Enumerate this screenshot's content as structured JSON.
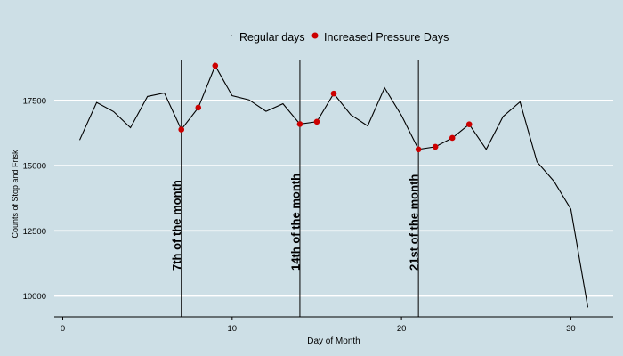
{
  "chart_data": {
    "type": "line",
    "title": "",
    "xlabel": "Day of Month",
    "ylabel": "Counts of Stop and Frisk",
    "xlim": [
      -0.5,
      32.5
    ],
    "ylim": [
      9200,
      19300
    ],
    "x_ticks": [
      0,
      10,
      20,
      30
    ],
    "y_ticks": [
      10000,
      12500,
      15000,
      17500
    ],
    "grid": "horizontal",
    "legend_position": "top-center",
    "legend": [
      {
        "label": "Regular days",
        "marker": "line"
      },
      {
        "label": "Increased Pressure Days",
        "marker": "dot"
      }
    ],
    "series": [
      {
        "name": "Regular days",
        "x": [
          1,
          2,
          3,
          4,
          5,
          6,
          7,
          8,
          9,
          10,
          11,
          12,
          13,
          14,
          15,
          16,
          17,
          18,
          19,
          20,
          21,
          22,
          23,
          24,
          25,
          26,
          27,
          28,
          29,
          30,
          31
        ],
        "values": [
          15980,
          17420,
          17070,
          16450,
          17650,
          17780,
          16380,
          17220,
          18830,
          17680,
          17520,
          17080,
          17370,
          16590,
          16680,
          17760,
          16950,
          16520,
          17980,
          16920,
          15620,
          15720,
          16060,
          16580,
          15620,
          16880,
          17440,
          15140,
          14400,
          13330,
          9560
        ]
      },
      {
        "name": "Increased Pressure Days",
        "x": [
          7,
          8,
          9,
          14,
          15,
          16,
          21,
          22,
          23,
          24
        ],
        "values": [
          16380,
          17220,
          18830,
          16590,
          16680,
          17760,
          15620,
          15720,
          16060,
          16580
        ]
      }
    ],
    "annotations": [
      {
        "x": 7,
        "text": "7th of the month"
      },
      {
        "x": 14,
        "text": "14th of the month"
      },
      {
        "x": 21,
        "text": "21st of the month"
      }
    ],
    "colors": {
      "background": "#cddfe6",
      "line": "#000000",
      "highlight": "#cc0000",
      "grid": "#ffffff"
    }
  }
}
